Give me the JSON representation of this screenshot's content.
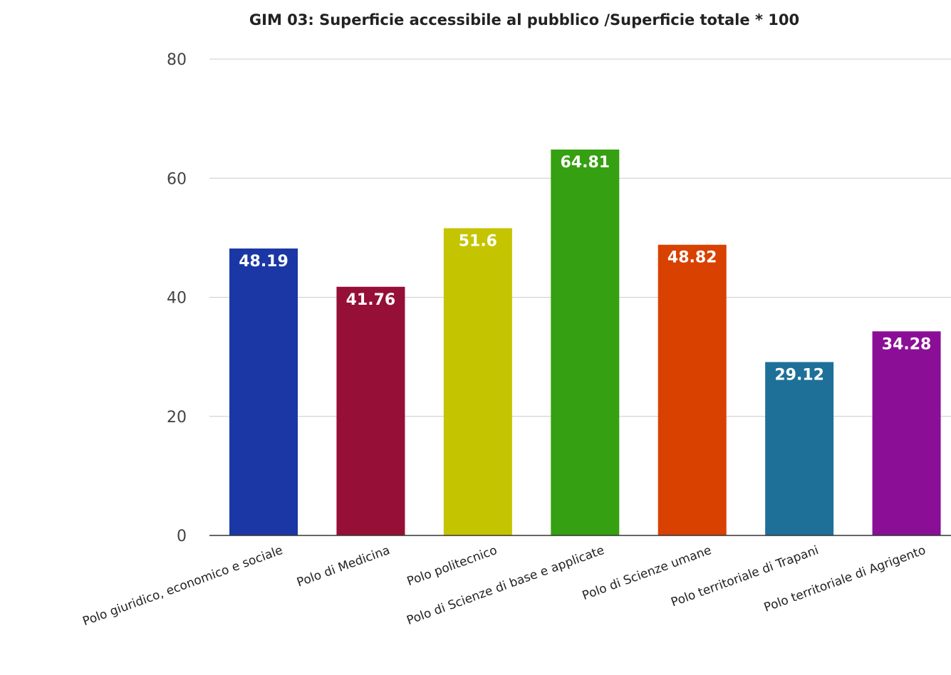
{
  "chart_data": {
    "type": "bar",
    "title": "GIM 03: Superficie accessibile al pubblico /Superficie totale * 100",
    "xlabel": "",
    "ylabel": "",
    "ylim": [
      0,
      80
    ],
    "yticks": [
      "0",
      "20",
      "40",
      "60",
      "80"
    ],
    "grid": true,
    "legend": "none",
    "categories": [
      "Polo giuridico, economico e sociale",
      "Polo di Medicina",
      "Polo politecnico",
      "Polo di Scienze di base e applicate",
      "Polo di Scienze umane",
      "Polo territoriale di Trapani",
      "Polo territoriale di Agrigento"
    ],
    "values": [
      48.19,
      41.76,
      51.6,
      64.81,
      48.82,
      29.12,
      34.28
    ],
    "data_labels": [
      "48.19",
      "41.76",
      "51.6",
      "64.81",
      "48.82",
      "29.12",
      "34.28"
    ],
    "colors": [
      "#1a37a5",
      "#960f36",
      "#c4c400",
      "#35a011",
      "#d84100",
      "#1f7099",
      "#8a0f96"
    ]
  }
}
